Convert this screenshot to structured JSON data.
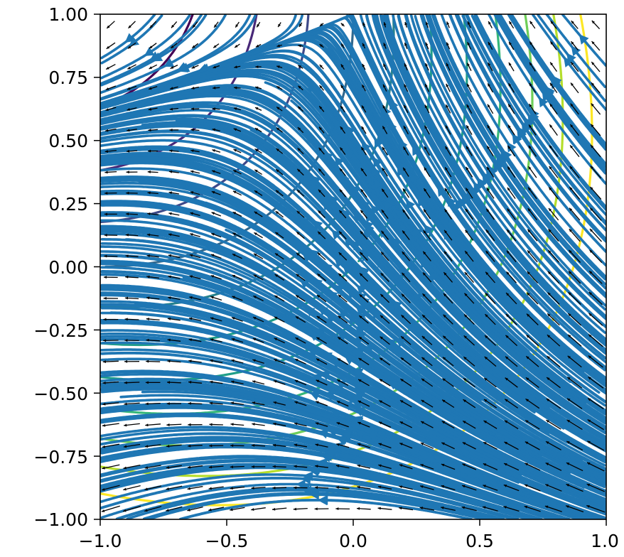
{
  "chart_data": {
    "type": "streamplot",
    "title": "",
    "xlabel": "",
    "ylabel": "",
    "xlim": [
      -1.0,
      1.0
    ],
    "ylim": [
      -1.0,
      1.0
    ],
    "grid": false,
    "x_ticks": [
      "−1.0",
      "−0.5",
      "0.0",
      "0.5",
      "1.0"
    ],
    "x_tick_values": [
      -1.0,
      -0.5,
      0.0,
      0.5,
      1.0
    ],
    "y_ticks": [
      "1.00",
      "0.75",
      "0.50",
      "0.25",
      "0.00",
      "−0.25",
      "−0.50",
      "−0.75",
      "−1.00"
    ],
    "y_tick_values": [
      1.0,
      0.75,
      0.5,
      0.25,
      0.0,
      -0.25,
      -0.5,
      -0.75,
      -1.0
    ],
    "layers": [
      {
        "kind": "contour",
        "colormap": "viridis",
        "levels": [
          -2.5,
          -2.0,
          -1.5,
          -1.0,
          -0.5,
          0.0,
          0.5,
          1.0,
          1.5,
          2.0,
          2.5
        ]
      },
      {
        "kind": "streamlines",
        "color": "#1f77b4"
      },
      {
        "kind": "quiver",
        "color": "#000000",
        "grid_n": 24
      }
    ],
    "colors": {
      "streamline": "#1f77b4",
      "quiver": "#000000",
      "axes": "#000000"
    }
  }
}
